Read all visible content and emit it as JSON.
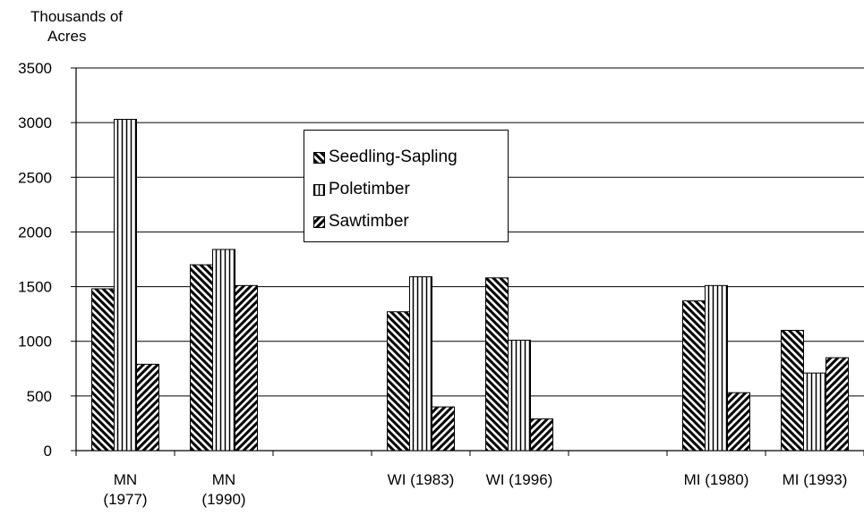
{
  "chart_data": {
    "type": "bar",
    "ylabel_lines": [
      "Thousands of",
      "Acres"
    ],
    "ylim": [
      0,
      3500
    ],
    "yticks": [
      "0",
      "500",
      "1000",
      "1500",
      "2000",
      "2500",
      "3000",
      "3500"
    ],
    "grid": true,
    "legend_position": "top-center",
    "categories": [
      {
        "label_lines": [
          "MN",
          "(1977)"
        ]
      },
      {
        "label_lines": [
          "MN",
          "(1990)"
        ]
      },
      {
        "label_lines": [
          ""
        ]
      },
      {
        "label_lines": [
          "WI (1983)"
        ]
      },
      {
        "label_lines": [
          "WI (1996)"
        ]
      },
      {
        "label_lines": [
          ""
        ]
      },
      {
        "label_lines": [
          "MI (1980)"
        ]
      },
      {
        "label_lines": [
          "MI (1993)"
        ]
      }
    ],
    "series": [
      {
        "name": "Seedling-Sapling",
        "pattern": "back-diagonal",
        "values": [
          1480,
          1700,
          null,
          1270,
          1580,
          null,
          1370,
          1100
        ]
      },
      {
        "name": "Poletimber",
        "pattern": "vertical",
        "values": [
          3030,
          1840,
          null,
          1590,
          1010,
          null,
          1510,
          710
        ]
      },
      {
        "name": "Sawtimber",
        "pattern": "forward-diagonal",
        "values": [
          790,
          1510,
          null,
          400,
          290,
          null,
          530,
          850
        ]
      }
    ]
  }
}
